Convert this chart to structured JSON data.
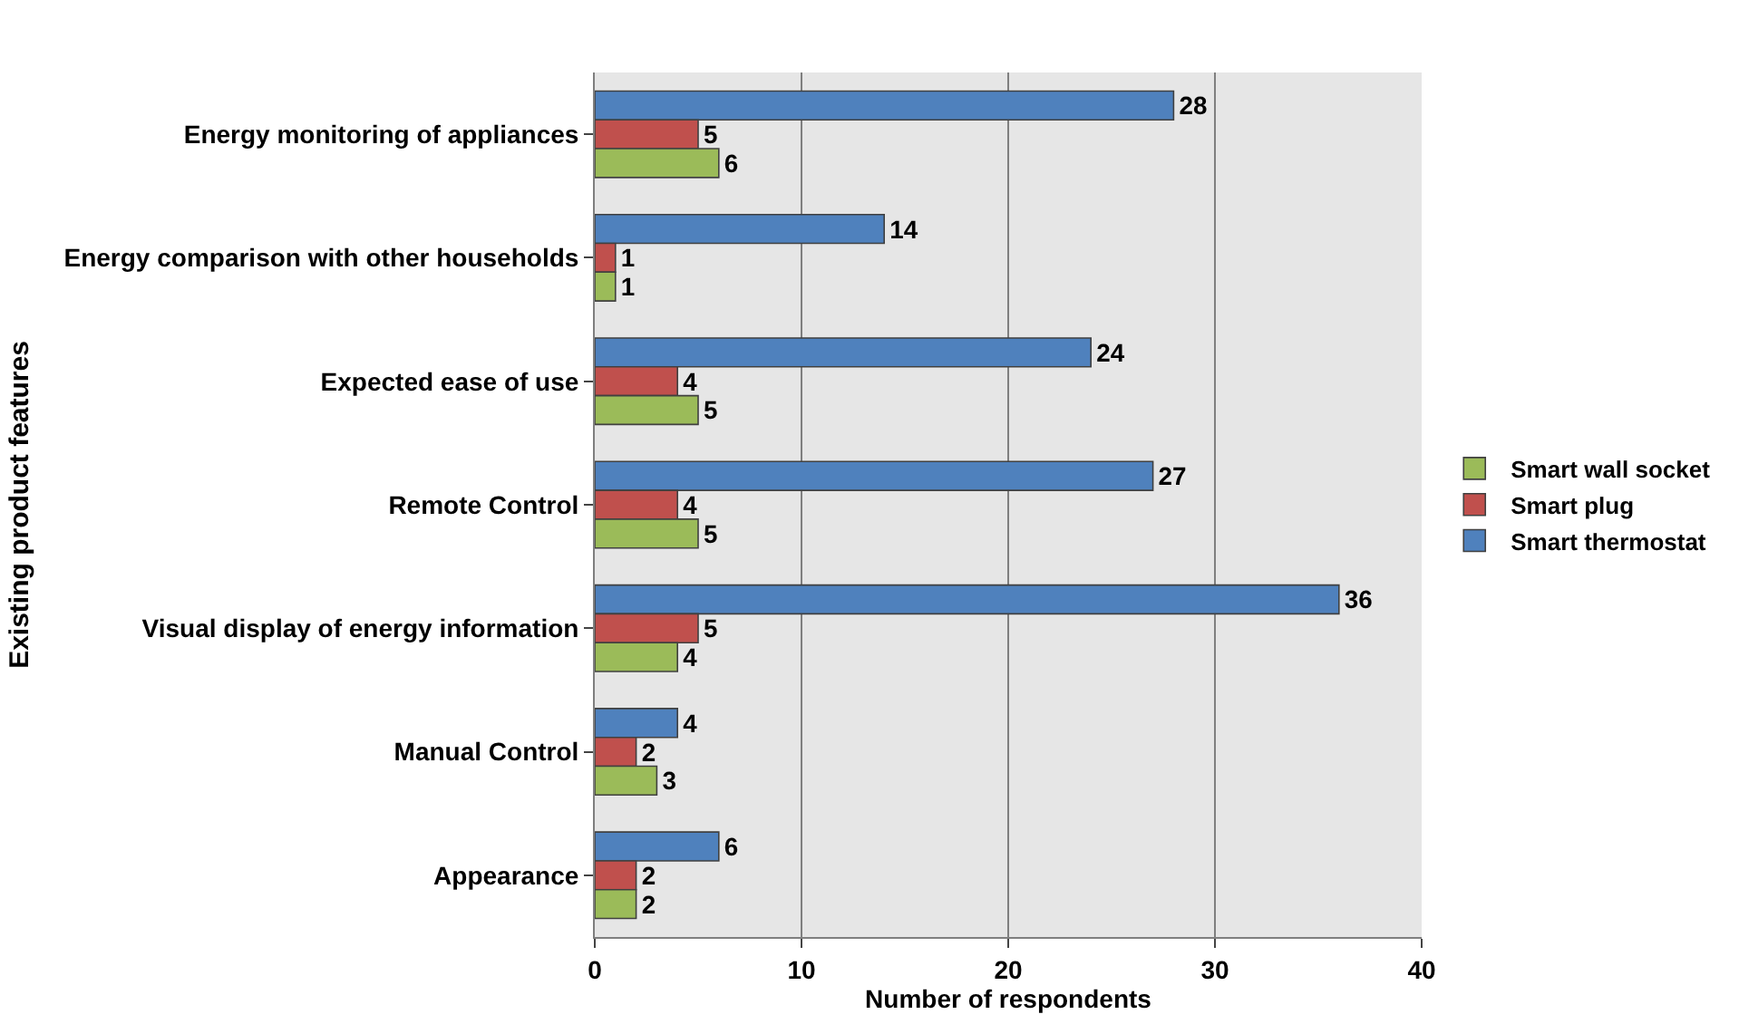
{
  "chart_data": {
    "type": "bar",
    "orientation": "horizontal",
    "xlabel": "Number of respondents",
    "ylabel": "Existing product features",
    "categories": [
      "Energy monitoring of appliances",
      "Energy comparison with other households",
      "Expected ease of use",
      "Remote Control",
      "Visual display of energy information",
      "Manual Control",
      "Appearance"
    ],
    "series": [
      {
        "name": "Smart wall socket",
        "color": "#9bbb59",
        "values": [
          6,
          1,
          5,
          5,
          4,
          3,
          2
        ]
      },
      {
        "name": "Smart plug",
        "color": "#c0504d",
        "values": [
          5,
          1,
          4,
          4,
          5,
          2,
          2
        ]
      },
      {
        "name": "Smart thermostat",
        "color": "#4f81bd",
        "values": [
          28,
          14,
          24,
          27,
          36,
          4,
          6
        ]
      }
    ],
    "xlim": [
      0,
      40
    ],
    "xticks": [
      0,
      10,
      20,
      30,
      40
    ],
    "grid": "x",
    "legend": "right",
    "data_labels": true
  }
}
